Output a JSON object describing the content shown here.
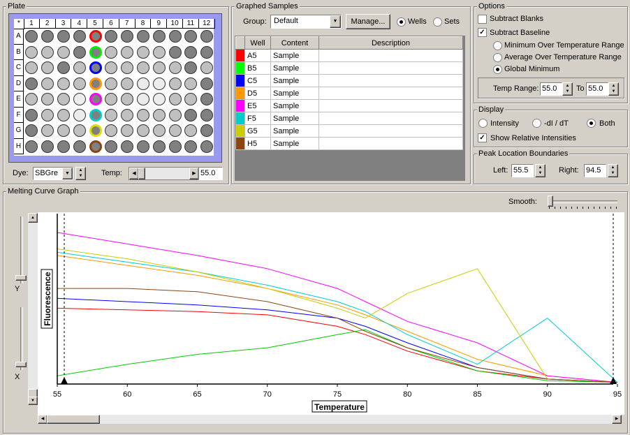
{
  "plate": {
    "title": "Plate",
    "corner": "*",
    "columns": [
      "1",
      "2",
      "3",
      "4",
      "5",
      "6",
      "7",
      "8",
      "9",
      "10",
      "11",
      "12"
    ],
    "rows": [
      "A",
      "B",
      "C",
      "D",
      "E",
      "F",
      "G",
      "H"
    ],
    "dye_label": "Dye:",
    "dye_value": "SBGre",
    "temp_label": "Temp:",
    "temp_value": "55.0"
  },
  "graphed": {
    "title": "Graphed Samples",
    "group_label": "Group:",
    "group_value": "Default",
    "manage_label": "Manage...",
    "wells_label": "Wells",
    "sets_label": "Sets",
    "headers": [
      "Well",
      "Content",
      "Description"
    ],
    "rows": [
      {
        "well": "A5",
        "content": "Sample",
        "color": "#ff0000"
      },
      {
        "well": "B5",
        "content": "Sample",
        "color": "#00ff00"
      },
      {
        "well": "C5",
        "content": "Sample",
        "color": "#0000ff"
      },
      {
        "well": "D5",
        "content": "Sample",
        "color": "#ff9900"
      },
      {
        "well": "E5",
        "content": "Sample",
        "color": "#ff00ff"
      },
      {
        "well": "F5",
        "content": "Sample",
        "color": "#00cccc"
      },
      {
        "well": "G5",
        "content": "Sample",
        "color": "#cccc00"
      },
      {
        "well": "H5",
        "content": "Sample",
        "color": "#8b4513"
      }
    ]
  },
  "options": {
    "title": "Options",
    "subtract_blanks": "Subtract Blanks",
    "subtract_baseline": "Subtract Baseline",
    "min_over": "Minimum Over Temperature Range",
    "avg_over": "Average Over Temperature Range",
    "global_min": "Global Minimum",
    "temp_range_label": "Temp Range:",
    "temp_from": "55.0",
    "to_label": "To",
    "temp_to": "55.0"
  },
  "display": {
    "title": "Display",
    "intensity": "Intensity",
    "didt": "-dI / dT",
    "both": "Both",
    "show_relative": "Show Relative Intensities"
  },
  "peak": {
    "title": "Peak Location Boundaries",
    "left_label": "Left:",
    "left_value": "55.5",
    "right_label": "Right:",
    "right_value": "94.5"
  },
  "graph": {
    "title": "Melting Curve Graph",
    "smooth_label": "Smooth:",
    "y_label": "Y",
    "x_label": "X",
    "ylabel": "Fluorescence",
    "xlabel": "Temperature",
    "xticks": [
      "55",
      "60",
      "65",
      "70",
      "75",
      "80",
      "85",
      "90",
      "95"
    ]
  },
  "chart_data": {
    "type": "line",
    "xlabel": "Temperature",
    "ylabel": "Fluorescence",
    "xlim": [
      55,
      95
    ],
    "ylim": [
      0,
      1
    ],
    "series": [
      {
        "name": "A5",
        "color": "#ff0000",
        "x": [
          55,
          60,
          65,
          70,
          75,
          77,
          80,
          85,
          90,
          95
        ],
        "y": [
          0.46,
          0.45,
          0.44,
          0.42,
          0.35,
          0.3,
          0.2,
          0.08,
          0.03,
          0.01
        ]
      },
      {
        "name": "B5",
        "color": "#00cc00",
        "x": [
          55,
          60,
          65,
          70,
          75,
          77,
          80,
          85,
          90,
          95
        ],
        "y": [
          0.05,
          0.12,
          0.18,
          0.22,
          0.3,
          0.33,
          0.22,
          0.08,
          0.02,
          0.01
        ]
      },
      {
        "name": "C5",
        "color": "#0000ff",
        "x": [
          55,
          60,
          65,
          70,
          75,
          77,
          80,
          85,
          90,
          95
        ],
        "y": [
          0.52,
          0.5,
          0.48,
          0.45,
          0.4,
          0.35,
          0.25,
          0.1,
          0.03,
          0.01
        ]
      },
      {
        "name": "D5",
        "color": "#ff9900",
        "x": [
          55,
          60,
          65,
          70,
          75,
          77,
          80,
          85,
          90,
          95
        ],
        "y": [
          0.78,
          0.72,
          0.66,
          0.58,
          0.48,
          0.42,
          0.32,
          0.15,
          0.05,
          0.01
        ]
      },
      {
        "name": "E5",
        "color": "#ff00ff",
        "x": [
          55,
          60,
          65,
          70,
          75,
          77,
          80,
          85,
          90,
          95
        ],
        "y": [
          0.92,
          0.85,
          0.78,
          0.7,
          0.58,
          0.5,
          0.38,
          0.25,
          0.05,
          0.01
        ]
      },
      {
        "name": "F5",
        "color": "#00cccc",
        "x": [
          55,
          60,
          65,
          70,
          75,
          77,
          80,
          85,
          90,
          95
        ],
        "y": [
          0.8,
          0.74,
          0.68,
          0.6,
          0.5,
          0.44,
          0.3,
          0.12,
          0.4,
          0.01
        ]
      },
      {
        "name": "G5",
        "color": "#cccc00",
        "x": [
          55,
          60,
          65,
          70,
          75,
          77,
          80,
          85,
          90,
          95
        ],
        "y": [
          0.82,
          0.76,
          0.68,
          0.58,
          0.46,
          0.4,
          0.55,
          0.7,
          0.03,
          0.01
        ]
      },
      {
        "name": "H5",
        "color": "#8b4513",
        "x": [
          55,
          60,
          65,
          70,
          75,
          77,
          80,
          85,
          90,
          95
        ],
        "y": [
          0.58,
          0.58,
          0.56,
          0.5,
          0.4,
          0.32,
          0.22,
          0.1,
          0.03,
          0.01
        ]
      }
    ]
  }
}
